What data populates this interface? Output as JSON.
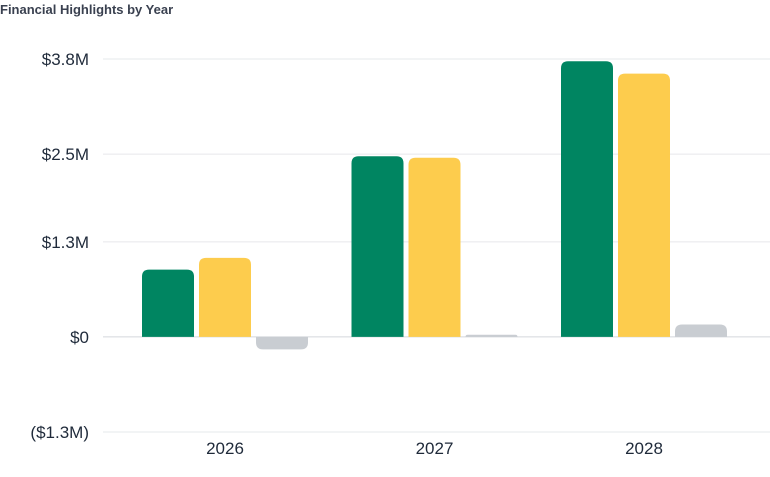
{
  "chart_data": {
    "type": "bar",
    "title": "Financial Highlights by Year",
    "categories": [
      "2026",
      "2027",
      "2028"
    ],
    "series": [
      {
        "color": "#008561",
        "values": [
          0.92,
          2.47,
          3.77
        ]
      },
      {
        "color": "#FDCC4D",
        "values": [
          1.08,
          2.45,
          3.6
        ]
      },
      {
        "color": "#C9CDD2",
        "values": [
          -0.17,
          0.03,
          0.17
        ]
      }
    ],
    "ylim": [
      -1.3,
      3.8
    ],
    "yticks": [
      {
        "value": 3.8,
        "label": "$3.8M"
      },
      {
        "value": 2.5,
        "label": "$2.5M"
      },
      {
        "value": 1.3,
        "label": "$1.3M"
      },
      {
        "value": 0,
        "label": "$0"
      },
      {
        "value": -1.3,
        "label": "($1.3M)"
      }
    ],
    "grid": true,
    "xlabel": "",
    "ylabel": ""
  }
}
